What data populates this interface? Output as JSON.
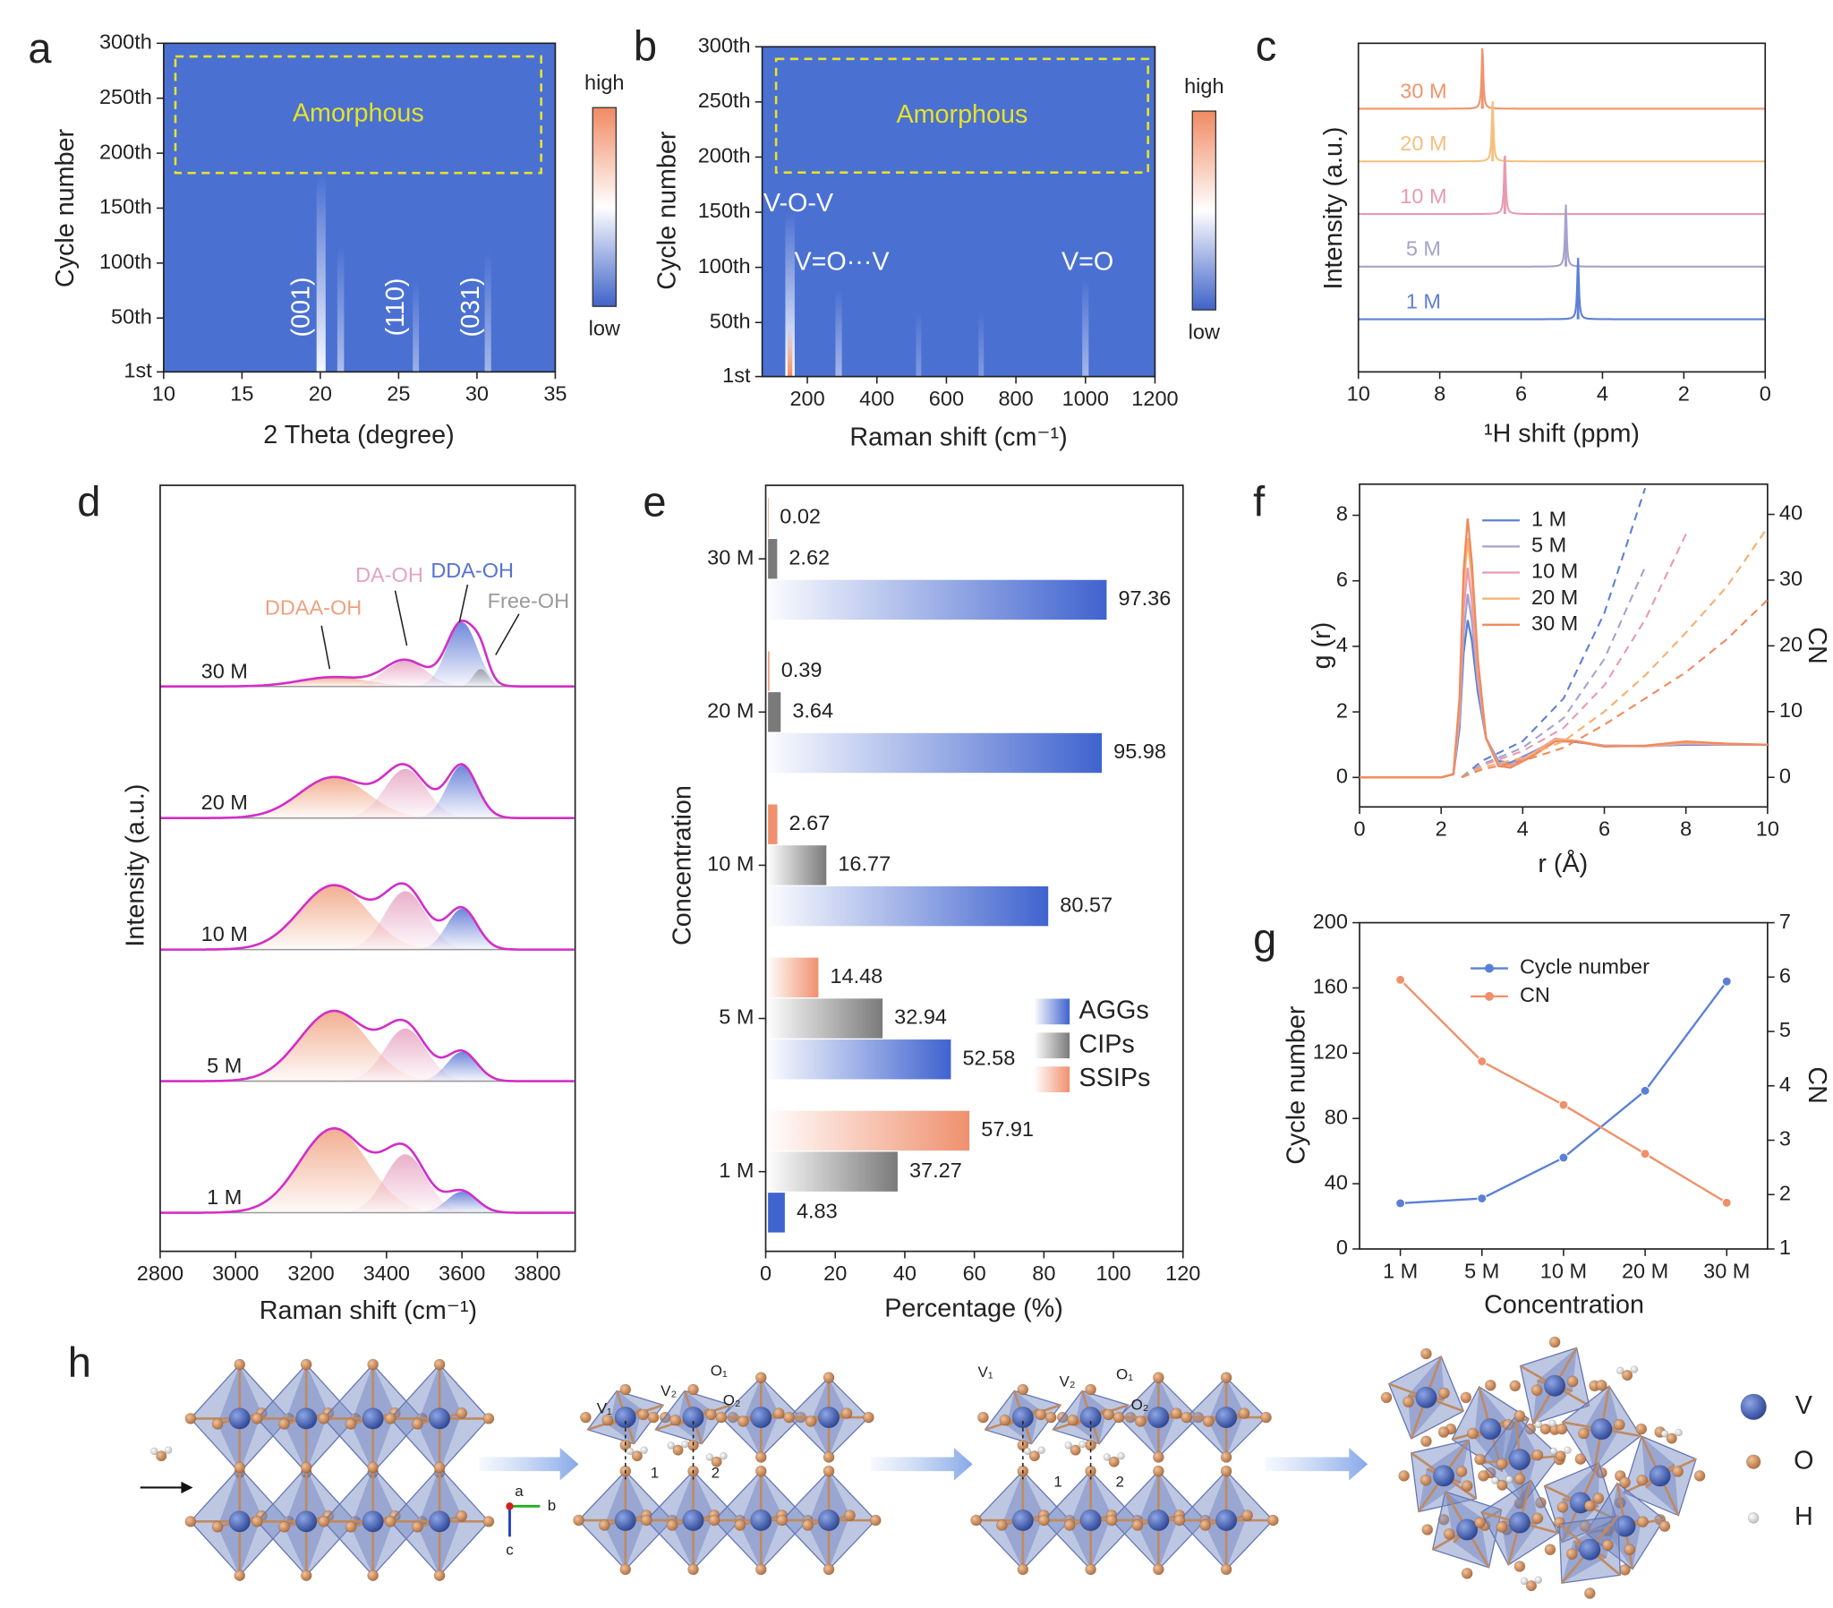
{
  "chart_data": [
    {
      "type": "heatmap",
      "panel": "a",
      "xlabel": "2 Theta (degree)",
      "ylabel": "Cycle number",
      "xlim": [
        10,
        35
      ],
      "xticks": [
        10,
        15,
        20,
        25,
        30,
        35
      ],
      "ylim": [
        1,
        300
      ],
      "yticks": [
        {
          "value": 1,
          "label": "1st"
        },
        {
          "value": 50,
          "label": "50th"
        },
        {
          "value": 100,
          "label": "100th"
        },
        {
          "value": 150,
          "label": "150th"
        },
        {
          "value": 200,
          "label": "200th"
        },
        {
          "value": 250,
          "label": "250th"
        },
        {
          "value": 300,
          "label": "300th"
        }
      ],
      "background": "#4a70d2",
      "colorbar": {
        "labels": [
          "high",
          "low"
        ],
        "colors": [
          "#f08a62",
          "#ffffff",
          "#3f63c8"
        ]
      },
      "peaks": {
        "x": [
          20.05,
          21.3,
          26.1,
          30.7
        ],
        "ends": [
          180,
          116,
          84,
          110
        ],
        "intensity": [
          0.95,
          0.55,
          0.45,
          0.5
        ]
      },
      "peak_labels": [
        {
          "text": "(001)",
          "x": 18.85,
          "y": 60
        },
        {
          "text": "(110)",
          "x": 24.9,
          "y": 60
        },
        {
          "text": "(031)",
          "x": 29.7,
          "y": 60
        }
      ],
      "box": {
        "text": "Amorphous",
        "xlim": [
          10.75,
          34.1
        ],
        "ylim": [
          182,
          288
        ],
        "color": "#e6e22a"
      }
    },
    {
      "type": "heatmap",
      "panel": "b",
      "xlabel": "Raman shift (cm⁻¹)",
      "ylabel": "Cycle number",
      "xlim": [
        70,
        1200
      ],
      "xticks": [
        200,
        400,
        600,
        800,
        1000,
        1200
      ],
      "ylim": [
        1,
        300
      ],
      "yticks": [
        {
          "value": 1,
          "label": "1st"
        },
        {
          "value": 50,
          "label": "50th"
        },
        {
          "value": 100,
          "label": "100th"
        },
        {
          "value": 150,
          "label": "150th"
        },
        {
          "value": 200,
          "label": "200th"
        },
        {
          "value": 250,
          "label": "250th"
        },
        {
          "value": 300,
          "label": "300th"
        }
      ],
      "background": "#4a70d2",
      "colorbar": {
        "labels": [
          "high",
          "low"
        ],
        "colors": [
          "#f08a62",
          "#ffffff",
          "#3f63c8"
        ]
      },
      "peaks": {
        "x": [
          150,
          290,
          520,
          700,
          1000
        ],
        "ends": [
          150,
          80,
          60,
          60,
          90
        ],
        "intensity": [
          1,
          0.5,
          0.3,
          0.3,
          0.5
        ]
      },
      "annotations": [
        {
          "text": "V-O-V",
          "x": 174,
          "y": 157
        },
        {
          "text": "V=O···V",
          "x": 299,
          "y": 104
        },
        {
          "text": "V=O",
          "x": 1006,
          "y": 104
        }
      ],
      "box": {
        "text": "Amorphous",
        "xlim": [
          110,
          1180
        ],
        "ylim": [
          186,
          289
        ],
        "color": "#e6e22a"
      }
    },
    {
      "type": "spectra",
      "panel": "c",
      "xlabel": "¹H shift (ppm)",
      "ylabel": "Intensity (a.u.)",
      "xlim": [
        10,
        0
      ],
      "xticks": [
        10,
        8,
        6,
        4,
        2,
        0
      ],
      "series": [
        {
          "name": "30 M",
          "color": "#f0946e",
          "peak": 6.95
        },
        {
          "name": "20 M",
          "color": "#f5c07e",
          "peak": 6.7
        },
        {
          "name": "10 M",
          "color": "#e99ab0",
          "peak": 6.4
        },
        {
          "name": "5 M",
          "color": "#a6a2cf",
          "peak": 4.9
        },
        {
          "name": "1 M",
          "color": "#5d80d6",
          "peak": 4.6
        }
      ]
    },
    {
      "type": "raman_fit",
      "panel": "d",
      "xlabel": "Raman shift (cm⁻¹)",
      "ylabel": "Intensity (a.u.)",
      "xlim": [
        2800,
        3900
      ],
      "xticks": [
        2800,
        3000,
        3200,
        3400,
        3600,
        3800
      ],
      "line_color": "#d22ec8",
      "components": {
        "names": [
          "DDAA-OH",
          "DA-OH",
          "DDA-OH",
          "Free-OH"
        ],
        "colors": [
          "#f0a07e",
          "#e6a2c0",
          "#5672d2",
          "#9a9a9a"
        ],
        "centers": [
          3260,
          3450,
          3600,
          3650
        ],
        "widths": [
          90,
          55,
          40,
          20
        ]
      },
      "series": [
        {
          "name": "30 M",
          "values": [
            0.08,
            0.22,
            0.55,
            0.15
          ]
        },
        {
          "name": "20 M",
          "values": [
            0.35,
            0.42,
            0.45,
            0
          ]
        },
        {
          "name": "10 M",
          "values": [
            0.55,
            0.5,
            0.35,
            0
          ]
        },
        {
          "name": "5 M",
          "values": [
            0.6,
            0.45,
            0.25,
            0
          ]
        },
        {
          "name": "1 M",
          "values": [
            0.72,
            0.5,
            0.18,
            0
          ]
        }
      ]
    },
    {
      "type": "barh",
      "panel": "e",
      "xlabel": "Percentage (%)",
      "ylabel": "Concentration",
      "xlim": [
        0,
        120
      ],
      "xticks": [
        0,
        20,
        40,
        60,
        80,
        100,
        120
      ],
      "legend": "right",
      "categories": [
        "30 M",
        "20 M",
        "10 M",
        "5 M",
        "1 M"
      ],
      "series": [
        {
          "name": "AGGs",
          "color": "#3f63cf",
          "values": [
            97.36,
            95.98,
            80.57,
            52.58,
            4.83
          ]
        },
        {
          "name": "CIPs",
          "color": "#7a7a7a",
          "values": [
            2.62,
            3.64,
            16.77,
            32.94,
            37.27
          ]
        },
        {
          "name": "SSIPs",
          "color": "#f0906e",
          "values": [
            0.02,
            0.39,
            2.67,
            14.48,
            57.91
          ]
        }
      ]
    },
    {
      "type": "line",
      "panel": "f",
      "xlabel": "r (Å)",
      "ylabel": "g (r)",
      "y2label": "CN",
      "legend": "top",
      "xlim": [
        0,
        10
      ],
      "xticks": [
        0,
        2,
        4,
        6,
        8,
        10
      ],
      "ylim": [
        -0.9,
        8.95
      ],
      "yticks": [
        0,
        2,
        4,
        6,
        8
      ],
      "y2lim": [
        -4.5,
        44.6
      ],
      "y2ticks": [
        0,
        10,
        20,
        30,
        40
      ],
      "series": [
        {
          "name": "1 M",
          "color": "#5d80d6",
          "x": [
            0,
            2,
            2.3,
            2.45,
            2.55,
            2.65,
            2.75,
            2.9,
            3.1,
            3.4,
            3.7,
            4.2,
            4.8,
            5.3,
            6,
            7,
            8,
            9,
            10
          ],
          "values": [
            0,
            0,
            0.1,
            1.5,
            3.8,
            4.8,
            4.2,
            2.6,
            1.2,
            0.5,
            0.45,
            0.75,
            1.12,
            1.08,
            0.97,
            0.96,
            1.0,
            1.0,
            1.0
          ]
        },
        {
          "name": "5 M",
          "color": "#a6a2cf",
          "x": [
            0,
            2,
            2.3,
            2.45,
            2.55,
            2.65,
            2.75,
            2.9,
            3.1,
            3.4,
            3.7,
            4.2,
            4.8,
            5.3,
            6,
            7,
            8,
            9,
            10
          ],
          "values": [
            0,
            0,
            0.1,
            1.7,
            4.4,
            5.6,
            4.8,
            2.9,
            1.2,
            0.45,
            0.4,
            0.72,
            1.15,
            1.1,
            0.97,
            0.95,
            1.02,
            1.0,
            1.0
          ]
        },
        {
          "name": "10 M",
          "color": "#e99ab0",
          "x": [
            0,
            2,
            2.3,
            2.45,
            2.55,
            2.65,
            2.75,
            2.9,
            3.1,
            3.4,
            3.7,
            4.2,
            4.8,
            5.3,
            6,
            7,
            8,
            9,
            10
          ],
          "values": [
            0,
            0,
            0.1,
            2.0,
            5.1,
            6.4,
            5.4,
            3.1,
            1.2,
            0.4,
            0.35,
            0.7,
            1.18,
            1.12,
            0.96,
            0.95,
            1.04,
            1.01,
            1.0
          ]
        },
        {
          "name": "20 M",
          "color": "#f5b070",
          "x": [
            0,
            2,
            2.3,
            2.45,
            2.55,
            2.65,
            2.75,
            2.9,
            3.1,
            3.4,
            3.7,
            4.2,
            4.8,
            5.3,
            6,
            7,
            8,
            9,
            10
          ],
          "values": [
            0,
            0,
            0.1,
            2.2,
            5.8,
            7.3,
            6.1,
            3.4,
            1.2,
            0.38,
            0.32,
            0.66,
            1.15,
            1.12,
            0.95,
            0.96,
            1.07,
            1.02,
            1.0
          ]
        },
        {
          "name": "30 M",
          "color": "#f08a5e",
          "x": [
            0,
            2,
            2.3,
            2.45,
            2.55,
            2.65,
            2.75,
            2.9,
            3.1,
            3.4,
            3.7,
            4.2,
            4.8,
            5.3,
            6,
            7,
            8,
            9,
            10
          ],
          "values": [
            0,
            0,
            0.1,
            2.4,
            6.3,
            7.9,
            6.6,
            3.6,
            1.2,
            0.35,
            0.3,
            0.62,
            1.1,
            1.1,
            0.94,
            0.97,
            1.1,
            1.03,
            1.0
          ]
        },
        {
          "color": "#5d80d6",
          "axis": "y2",
          "dashed": true,
          "x": [
            2.5,
            3,
            4,
            5,
            6,
            7,
            8,
            9,
            10
          ],
          "values": [
            0,
            2.5,
            5.5,
            12,
            25,
            44,
            null,
            null,
            null
          ]
        },
        {
          "color": "#a6a2cf",
          "axis": "y2",
          "dashed": true,
          "x": [
            2.5,
            3,
            4,
            5,
            6,
            7,
            8,
            9,
            10
          ],
          "values": [
            0,
            2,
            4.5,
            9,
            18,
            32,
            null,
            null,
            null
          ]
        },
        {
          "color": "#e99ab0",
          "axis": "y2",
          "dashed": true,
          "x": [
            2.5,
            3,
            4,
            5,
            6,
            7,
            8,
            9,
            10
          ],
          "values": [
            0,
            1.8,
            4,
            7.5,
            14,
            24,
            37,
            null,
            null
          ]
        },
        {
          "color": "#f5b070",
          "axis": "y2",
          "dashed": true,
          "x": [
            2.5,
            3,
            4,
            5,
            6,
            7,
            8,
            9,
            10
          ],
          "values": [
            0,
            1.5,
            3,
            5.5,
            10,
            15.5,
            22,
            29,
            38
          ]
        },
        {
          "color": "#f08a5e",
          "axis": "y2",
          "dashed": true,
          "x": [
            2.5,
            3,
            4,
            5,
            6,
            7,
            8,
            9,
            10
          ],
          "values": [
            0,
            1.2,
            2.5,
            4.5,
            8,
            12,
            16,
            21,
            27
          ]
        }
      ]
    },
    {
      "type": "line",
      "panel": "g",
      "xlabel": "Concentration",
      "ylabel": "Cycle number",
      "y2label": "CN",
      "legend": "top-left",
      "markers": true,
      "categories": [
        "1 M",
        "5 M",
        "10 M",
        "20 M",
        "30 M"
      ],
      "ylim": [
        0,
        200
      ],
      "yticks": [
        0,
        40,
        80,
        120,
        160,
        200
      ],
      "y2lim": [
        1,
        7
      ],
      "y2ticks": [
        1,
        2,
        3,
        4,
        5,
        6,
        7
      ],
      "series": [
        {
          "name": "Cycle number",
          "color": "#5a7fd8",
          "values": [
            28,
            31,
            56,
            97,
            164
          ]
        },
        {
          "name": "CN",
          "color": "#f0906a",
          "axis": "y2",
          "values": [
            5.95,
            4.45,
            3.65,
            2.75,
            1.85
          ]
        }
      ]
    }
  ],
  "panel_h": {
    "panel": "h",
    "axes": [
      "a",
      "b",
      "c"
    ],
    "step2_labels": [
      "V₁",
      "V₂",
      "O₁",
      "O₂",
      "1",
      "2"
    ],
    "step3_labels": [
      "V₁",
      "V₂",
      "O₁",
      "O₂",
      "1",
      "2"
    ],
    "legend": [
      "V",
      "O",
      "H"
    ]
  }
}
